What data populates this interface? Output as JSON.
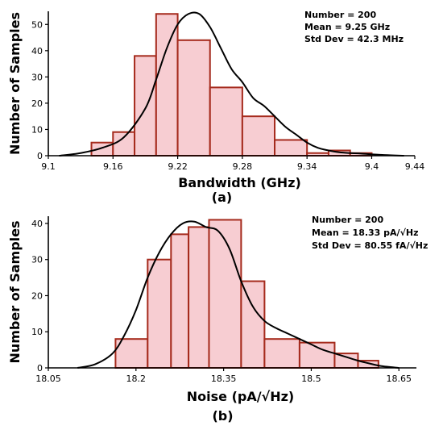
{
  "chart_data": [
    {
      "type": "bar",
      "panel_label": "(a)",
      "xlabel": "Bandwidth (GHz)",
      "ylabel": "Number of Samples",
      "xlim": [
        9.1,
        9.44
      ],
      "ylim": [
        0,
        55
      ],
      "xticks": [
        9.1,
        9.16,
        9.22,
        9.28,
        9.34,
        9.4,
        9.44
      ],
      "xtick_labels": [
        "9.1",
        "9.16",
        "9.22",
        "9.28",
        "9.34",
        "9.4",
        "9.44"
      ],
      "yticks": [
        0,
        10,
        20,
        30,
        40,
        50
      ],
      "stats": [
        "Number = 200",
        "Mean = 9.25 GHz",
        "Std Dev = 42.3 MHz"
      ],
      "bin_edges": [
        9.14,
        9.16,
        9.18,
        9.2,
        9.22,
        9.25,
        9.28,
        9.31,
        9.34,
        9.36,
        9.38,
        9.4
      ],
      "values": [
        5,
        9,
        38,
        54,
        44,
        26,
        15,
        6,
        1,
        2,
        1
      ],
      "fit_curve": {
        "x": [
          9.11,
          9.13,
          9.15,
          9.17,
          9.19,
          9.2,
          9.21,
          9.22,
          9.23,
          9.24,
          9.25,
          9.26,
          9.27,
          9.28,
          9.29,
          9.3,
          9.31,
          9.32,
          9.33,
          9.34,
          9.35,
          9.36,
          9.37,
          9.38,
          9.39,
          9.41,
          9.43
        ],
        "y": [
          0,
          1,
          3,
          7,
          18,
          29,
          41,
          50,
          54,
          54,
          49,
          41,
          33,
          28,
          22,
          19,
          15,
          11,
          8,
          5,
          3,
          2,
          1.3,
          1,
          0.8,
          0.3,
          0
        ]
      }
    },
    {
      "type": "bar",
      "panel_label": "(b)",
      "xlabel": "Noise (pA/√Hz)",
      "ylabel": "Number of Samples",
      "xlim": [
        18.05,
        18.68
      ],
      "ylim": [
        0,
        42
      ],
      "xticks": [
        18.05,
        18.2,
        18.35,
        18.5,
        18.65
      ],
      "xtick_labels": [
        "18.05",
        "18.2",
        "18.35",
        "18.5",
        "18.65"
      ],
      "yticks": [
        0,
        10,
        20,
        30,
        40
      ],
      "stats": [
        "Number = 200",
        "Mean = 18.33 pA/√Hz",
        "Std Dev = 80.55 fA/√Hz"
      ],
      "bin_edges": [
        18.165,
        18.22,
        18.26,
        18.29,
        18.325,
        18.38,
        18.42,
        18.48,
        18.54,
        18.58,
        18.615
      ],
      "values": [
        8,
        30,
        37,
        39,
        41,
        24,
        8,
        7,
        4,
        2
      ],
      "fit_curve": {
        "x": [
          18.1,
          18.13,
          18.16,
          18.18,
          18.2,
          18.22,
          18.24,
          18.26,
          18.28,
          18.3,
          18.32,
          18.34,
          18.36,
          18.38,
          18.4,
          18.42,
          18.44,
          18.46,
          18.48,
          18.5,
          18.52,
          18.54,
          18.56,
          18.58,
          18.6,
          18.62,
          18.65
        ],
        "y": [
          0,
          1,
          4,
          9,
          16,
          25,
          32,
          37,
          40,
          40.5,
          39,
          38,
          33,
          24,
          17,
          13,
          11,
          9.5,
          8,
          6.5,
          5,
          4,
          3,
          2,
          1.2,
          0.5,
          0
        ]
      }
    }
  ]
}
